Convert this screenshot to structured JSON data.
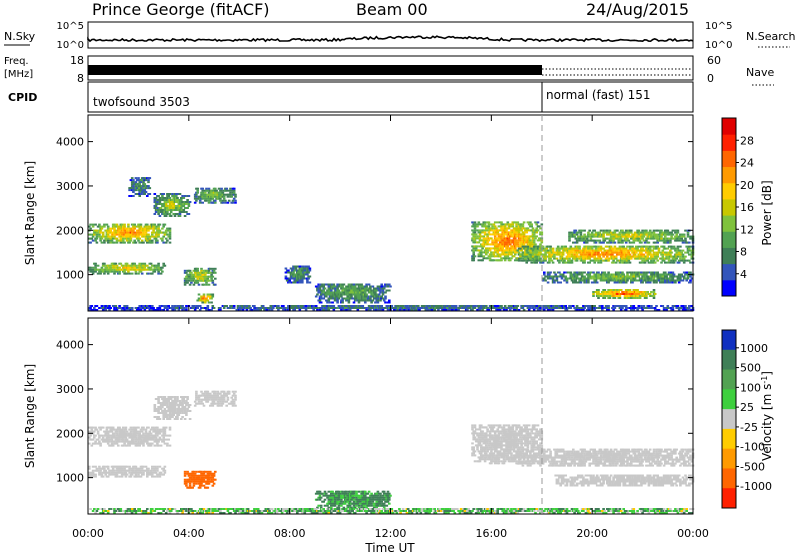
{
  "header": {
    "station": "Prince George (fitACF)",
    "beam": "Beam 00",
    "date": "24/Aug/2015"
  },
  "strips": {
    "nsky_label": "N.Sky",
    "nsky_ticks": [
      "10^5",
      "10^0"
    ],
    "nsearch_label": "N.Search",
    "nsearch_ticks": [
      "10^5",
      "10^0"
    ],
    "freq_label_1": "Freq.",
    "freq_label_2": "[MHz]",
    "freq_ticks": [
      "18",
      "8"
    ],
    "nave_label": "Nave",
    "nave_ticks": [
      "60",
      "0"
    ],
    "cpid_label": "CPID",
    "cpid_segments": [
      {
        "label": "twofsound 3503",
        "start_hour": 0,
        "end_hour": 18
      },
      {
        "label": "normal (fast) 151",
        "start_hour": 18,
        "end_hour": 24
      }
    ]
  },
  "chart_data": [
    {
      "type": "heatmap",
      "quantity": "power",
      "ylabel": "Slant Range [km]",
      "xlabel": "",
      "xlim": [
        0,
        24
      ],
      "ylim": [
        180,
        4600
      ],
      "yticks": [
        "1000",
        "2000",
        "3000",
        "4000"
      ],
      "colorbar": {
        "label": "Power [dB]",
        "ticks": [
          "28",
          "24",
          "20",
          "16",
          "12",
          "8",
          "4"
        ],
        "tick_values": [
          28,
          24,
          20,
          16,
          12,
          8,
          4
        ],
        "range": [
          0,
          32
        ],
        "colors": [
          "#0000ff",
          "#3355bb",
          "#3f7f57",
          "#52a252",
          "#7fc23c",
          "#c8c800",
          "#ffcc00",
          "#ff9a00",
          "#ff6600",
          "#ff2000",
          "#e00000"
        ]
      },
      "echo_regions": [
        {
          "t0": 0.0,
          "t1": 3.2,
          "r0": 1700,
          "r1": 2150,
          "power": 24
        },
        {
          "t0": 0.0,
          "t1": 3.0,
          "r0": 1000,
          "r1": 1250,
          "power": 20
        },
        {
          "t0": 1.6,
          "t1": 2.4,
          "r0": 2750,
          "r1": 3200,
          "power": 10
        },
        {
          "t0": 2.6,
          "t1": 4.0,
          "r0": 2300,
          "r1": 2800,
          "power": 16
        },
        {
          "t0": 4.2,
          "t1": 5.8,
          "r0": 2600,
          "r1": 2950,
          "power": 14
        },
        {
          "t0": 3.8,
          "t1": 5.0,
          "r0": 750,
          "r1": 1150,
          "power": 18
        },
        {
          "t0": 4.3,
          "t1": 4.9,
          "r0": 350,
          "r1": 550,
          "power": 26
        },
        {
          "t0": 7.8,
          "t1": 8.8,
          "r0": 800,
          "r1": 1200,
          "power": 10
        },
        {
          "t0": 9.0,
          "t1": 12.0,
          "r0": 350,
          "r1": 800,
          "power": 12
        },
        {
          "t0": 15.2,
          "t1": 18.0,
          "r0": 1300,
          "r1": 2200,
          "power": 26
        },
        {
          "t0": 17.0,
          "t1": 24.0,
          "r0": 1250,
          "r1": 1650,
          "power": 24
        },
        {
          "t0": 19.0,
          "t1": 24.0,
          "r0": 1700,
          "r1": 2000,
          "power": 18
        },
        {
          "t0": 18.0,
          "t1": 24.0,
          "r0": 800,
          "r1": 1050,
          "power": 14
        },
        {
          "t0": 20.0,
          "t1": 22.5,
          "r0": 450,
          "r1": 650,
          "power": 28
        },
        {
          "t0": 0.0,
          "t1": 24.0,
          "r0": 180,
          "r1": 300,
          "power": 8
        }
      ]
    },
    {
      "type": "heatmap",
      "quantity": "velocity",
      "ylabel": "Slant Range [km]",
      "xlabel": "Time UT",
      "xlim": [
        0,
        24
      ],
      "ylim": [
        180,
        4600
      ],
      "xticks": [
        "00:00",
        "04:00",
        "08:00",
        "12:00",
        "16:00",
        "20:00",
        "00:00"
      ],
      "yticks": [
        "1000",
        "2000",
        "3000",
        "4000"
      ],
      "colorbar": {
        "label": "Velocity [m s",
        "label_sup": "-1",
        "label_end": "]",
        "ticks": [
          "1000",
          "500",
          "100",
          "25",
          "-25",
          "-100",
          "-500",
          "-1000"
        ],
        "colors": [
          "#1030c0",
          "#3f7f57",
          "#52a252",
          "#3ecf3e",
          "#c8c8c8",
          "#ffcc00",
          "#ff9a00",
          "#ff6600",
          "#ff2000"
        ]
      },
      "echo_regions": [
        {
          "t0": 0.0,
          "t1": 3.2,
          "r0": 1700,
          "r1": 2150,
          "velocity": 0
        },
        {
          "t0": 0.0,
          "t1": 3.0,
          "r0": 1000,
          "r1": 1250,
          "velocity": 0
        },
        {
          "t0": 2.6,
          "t1": 4.0,
          "r0": 2300,
          "r1": 2800,
          "velocity": 0
        },
        {
          "t0": 4.2,
          "t1": 5.8,
          "r0": 2600,
          "r1": 2950,
          "velocity": 0
        },
        {
          "t0": 3.8,
          "t1": 5.0,
          "r0": 750,
          "r1": 1150,
          "velocity": -300
        },
        {
          "t0": 9.0,
          "t1": 12.0,
          "r0": 300,
          "r1": 700,
          "velocity": 150
        },
        {
          "t0": 15.2,
          "t1": 18.0,
          "r0": 1300,
          "r1": 2200,
          "velocity": 0
        },
        {
          "t0": 17.0,
          "t1": 24.0,
          "r0": 1250,
          "r1": 1650,
          "velocity": 0
        },
        {
          "t0": 18.5,
          "t1": 24.0,
          "r0": 800,
          "r1": 1050,
          "velocity": 0
        },
        {
          "t0": 0.0,
          "t1": 24.0,
          "r0": 180,
          "r1": 300,
          "velocity": 60
        }
      ]
    }
  ]
}
